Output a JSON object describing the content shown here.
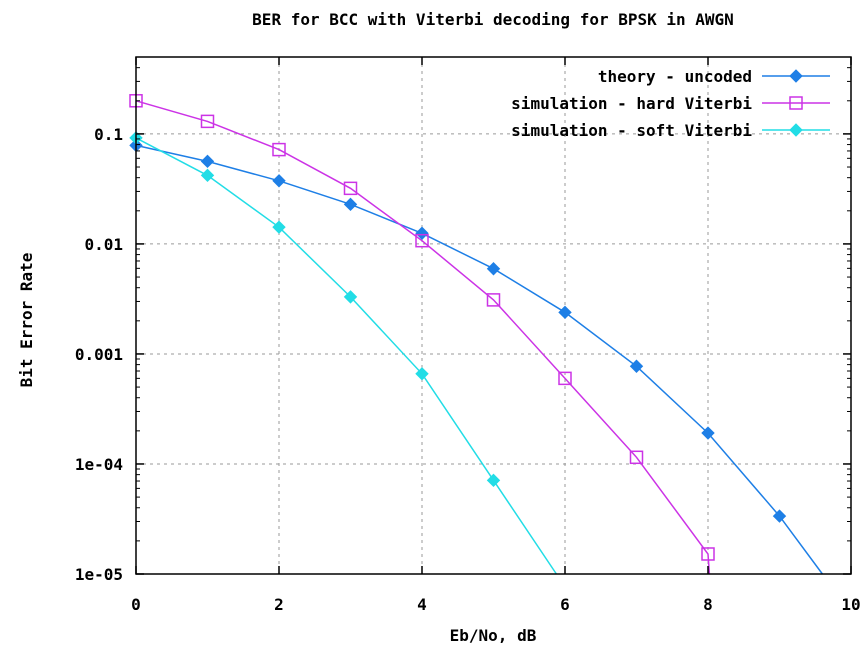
{
  "chart_data": {
    "type": "line",
    "title": "BER for BCC with Viterbi decoding for BPSK in AWGN",
    "xlabel": "Eb/No, dB",
    "ylabel": "Bit Error Rate",
    "xlim": [
      0,
      10
    ],
    "ylim": [
      1e-05,
      0.5
    ],
    "y_scale": "log",
    "grid": true,
    "legend_position": "top-right",
    "x_ticks": [
      {
        "value": 0,
        "label": "0"
      },
      {
        "value": 2,
        "label": "2"
      },
      {
        "value": 4,
        "label": "4"
      },
      {
        "value": 6,
        "label": "6"
      },
      {
        "value": 8,
        "label": "8"
      },
      {
        "value": 10,
        "label": "10"
      }
    ],
    "y_ticks": [
      {
        "value": 0.1,
        "label": "0.1"
      },
      {
        "value": 0.01,
        "label": "0.01"
      },
      {
        "value": 0.001,
        "label": "0.001"
      },
      {
        "value": 0.0001,
        "label": "1e-04"
      },
      {
        "value": 1e-05,
        "label": "1e-05"
      }
    ],
    "series": [
      {
        "name": "theory - uncoded",
        "color": "#1e7fe6",
        "marker": "filled-diamond",
        "x": [
          0,
          1,
          2,
          3,
          4,
          5,
          6,
          7,
          8,
          9,
          9.6
        ],
        "y": [
          0.0786,
          0.0563,
          0.0375,
          0.0229,
          0.0125,
          0.00595,
          0.00239,
          0.000773,
          0.000191,
          3.36e-05,
          1e-05
        ],
        "marker_count": 10
      },
      {
        "name": "simulation - hard Viterbi",
        "color": "#cc33e6",
        "marker": "open-square",
        "x": [
          0,
          1,
          2,
          3,
          4,
          5,
          6,
          7,
          8,
          8.02
        ],
        "y": [
          0.2,
          0.13,
          0.072,
          0.032,
          0.0107,
          0.0031,
          0.0006,
          0.000115,
          1.52e-05,
          1e-05
        ],
        "marker_count": 9
      },
      {
        "name": "simulation - soft Viterbi",
        "color": "#22dde6",
        "marker": "filled-diamond",
        "x": [
          0,
          1,
          2,
          3,
          4,
          5,
          5.88
        ],
        "y": [
          0.092,
          0.042,
          0.0142,
          0.0033,
          0.00066,
          7.1e-05,
          1e-05
        ],
        "marker_count": 6
      }
    ]
  }
}
